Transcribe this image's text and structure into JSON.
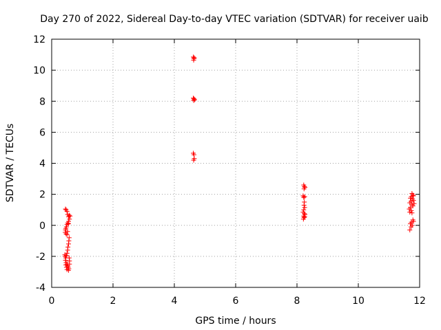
{
  "chart_data": {
    "type": "scatter",
    "title": "Day 270 of 2022, Sidereal Day-to-day VTEC variation (SDTVAR) for receiver uaib",
    "xlabel": "GPS time / hours",
    "ylabel": "SDTVAR / TECUs",
    "xlim": [
      0,
      12
    ],
    "ylim": [
      -4,
      12
    ],
    "xticks": [
      "0",
      "2",
      "4",
      "6",
      "8",
      "10",
      "12"
    ],
    "yticks": [
      "-4",
      "-2",
      "0",
      "2",
      "4",
      "6",
      "8",
      "10",
      "12"
    ],
    "grid": true,
    "legend": "none",
    "marker": "plus",
    "color": "#ff0000",
    "series": [
      {
        "points": [
          [
            0.45,
            1.05
          ],
          [
            0.47,
            1.0
          ],
          [
            0.5,
            0.9
          ],
          [
            0.52,
            0.7
          ],
          [
            0.55,
            0.55
          ],
          [
            0.57,
            0.65
          ],
          [
            0.58,
            0.4
          ],
          [
            0.55,
            0.25
          ],
          [
            0.52,
            0.15
          ],
          [
            0.5,
            0.05
          ],
          [
            0.48,
            -0.1
          ],
          [
            0.46,
            -0.2
          ],
          [
            0.45,
            -0.3
          ],
          [
            0.44,
            -0.45
          ],
          [
            0.47,
            -0.55
          ],
          [
            0.5,
            -0.6
          ],
          [
            0.52,
            -0.4
          ],
          [
            0.55,
            0.1
          ],
          [
            0.57,
            -0.8
          ],
          [
            0.56,
            -1.0
          ],
          [
            0.55,
            -1.2
          ],
          [
            0.53,
            -1.4
          ],
          [
            0.52,
            -1.6
          ],
          [
            0.5,
            -1.8
          ],
          [
            0.48,
            -1.95
          ],
          [
            0.46,
            -2.1
          ],
          [
            0.45,
            -2.25
          ],
          [
            0.47,
            -2.4
          ],
          [
            0.5,
            -2.5
          ],
          [
            0.52,
            -2.6
          ],
          [
            0.54,
            -2.7
          ],
          [
            0.56,
            -2.8
          ],
          [
            0.55,
            -2.9
          ],
          [
            0.5,
            -2.85
          ],
          [
            0.48,
            -2.7
          ],
          [
            0.46,
            -2.55
          ],
          [
            0.58,
            -2.3
          ],
          [
            0.57,
            -2.1
          ],
          [
            0.58,
            -2.5
          ],
          [
            0.44,
            -2.0
          ],
          [
            0.43,
            -1.9
          ],
          [
            0.6,
            0.6
          ]
        ]
      },
      {
        "points": [
          [
            4.62,
            10.85
          ],
          [
            4.64,
            10.75
          ],
          [
            4.63,
            10.65
          ],
          [
            4.65,
            10.8
          ],
          [
            4.62,
            8.2
          ],
          [
            4.64,
            8.15
          ],
          [
            4.66,
            8.1
          ],
          [
            4.63,
            8.05
          ],
          [
            4.62,
            4.65
          ],
          [
            4.64,
            4.55
          ],
          [
            4.65,
            4.3
          ],
          [
            4.63,
            4.2
          ]
        ]
      },
      {
        "points": [
          [
            8.22,
            2.6
          ],
          [
            8.24,
            2.5
          ],
          [
            8.26,
            2.45
          ],
          [
            8.23,
            2.35
          ],
          [
            8.2,
            1.9
          ],
          [
            8.22,
            1.8
          ],
          [
            8.25,
            1.85
          ],
          [
            8.24,
            1.5
          ],
          [
            8.23,
            1.3
          ],
          [
            8.25,
            1.15
          ],
          [
            8.22,
            1.0
          ],
          [
            8.2,
            0.85
          ],
          [
            8.24,
            0.75
          ],
          [
            8.26,
            0.7
          ],
          [
            8.22,
            0.6
          ],
          [
            8.23,
            0.5
          ],
          [
            8.21,
            0.4
          ],
          [
            8.25,
            0.55
          ]
        ]
      },
      {
        "points": [
          [
            11.75,
            2.05
          ],
          [
            11.78,
            1.95
          ],
          [
            11.73,
            1.85
          ],
          [
            11.7,
            1.75
          ],
          [
            11.77,
            1.7
          ],
          [
            11.8,
            1.6
          ],
          [
            11.72,
            1.55
          ],
          [
            11.68,
            1.45
          ],
          [
            11.75,
            1.35
          ],
          [
            11.78,
            1.25
          ],
          [
            11.7,
            1.15
          ],
          [
            11.66,
            1.05
          ],
          [
            11.73,
            0.95
          ],
          [
            11.68,
            0.85
          ],
          [
            11.75,
            0.8
          ],
          [
            11.78,
            0.35
          ],
          [
            11.8,
            0.25
          ],
          [
            11.73,
            0.2
          ],
          [
            11.7,
            0.1
          ],
          [
            11.76,
            0.0
          ],
          [
            11.72,
            -0.1
          ],
          [
            11.68,
            -0.3
          ],
          [
            11.8,
            1.9
          ],
          [
            11.82,
            1.4
          ]
        ]
      }
    ]
  }
}
